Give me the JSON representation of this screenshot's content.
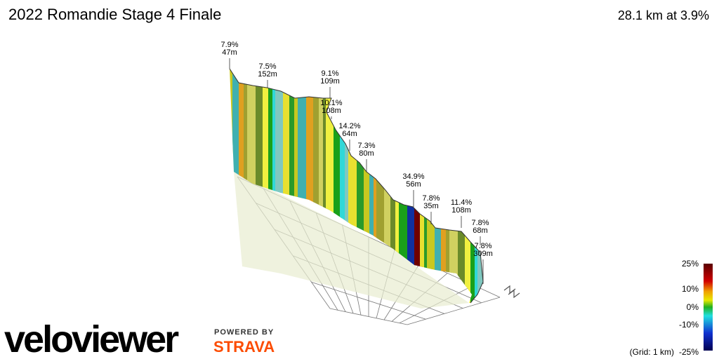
{
  "title": "2022 Romandie Stage 4 Finale",
  "summary": "28.1 km at 3.9%",
  "climbs": [
    {
      "grade": "7.9%",
      "length": "47m"
    },
    {
      "grade": "7.5%",
      "length": "152m"
    },
    {
      "grade": "9.1%",
      "length": "109m"
    },
    {
      "grade": "10.1%",
      "length": "108m"
    },
    {
      "grade": "14.2%",
      "length": "64m"
    },
    {
      "grade": "7.3%",
      "length": "80m"
    },
    {
      "grade": "34.9%",
      "length": "56m"
    },
    {
      "grade": "7.8%",
      "length": "35m"
    },
    {
      "grade": "11.4%",
      "length": "108m"
    },
    {
      "grade": "7.8%",
      "length": "68m"
    },
    {
      "grade": "7.8%",
      "length": "309m"
    }
  ],
  "legend": {
    "ticks": [
      "25%",
      "10%",
      "0%",
      "-10%",
      "-25%"
    ],
    "grid_note": "(Grid: 1 km)"
  },
  "branding": {
    "logo": "veloviewer",
    "powered_by": "POWERED BY",
    "partner": "STRAVA"
  }
}
